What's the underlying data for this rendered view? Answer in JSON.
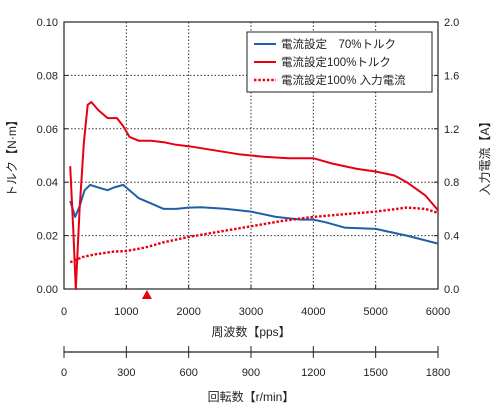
{
  "chart_data": {
    "type": "line",
    "x": {
      "label": "周波数【pps】",
      "range": [
        0,
        6000
      ],
      "ticks": [
        0,
        1000,
        2000,
        3000,
        4000,
        5000,
        6000
      ],
      "tick_labels": [
        "0",
        "1000",
        "2000",
        "3000",
        "4000",
        "5000",
        "6000"
      ]
    },
    "y_left": {
      "label": "トルク【N·m】",
      "range": [
        0,
        0.1
      ],
      "ticks": [
        0,
        0.02,
        0.04,
        0.06,
        0.08,
        0.1
      ],
      "tick_labels": [
        "0.00",
        "0.02",
        "0.04",
        "0.06",
        "0.08",
        "0.10"
      ]
    },
    "y_right": {
      "label": "入力電流【A】",
      "range": [
        0,
        2.0
      ],
      "ticks": [
        0,
        0.4,
        0.8,
        1.2,
        1.6,
        2.0
      ],
      "tick_labels": [
        "0.0",
        "0.4",
        "0.8",
        "1.2",
        "1.6",
        "2.0"
      ]
    },
    "x2": {
      "label": "回転数【r/min】",
      "range": [
        0,
        1800
      ],
      "ticks": [
        0,
        300,
        600,
        900,
        1200,
        1500,
        1800
      ],
      "tick_labels": [
        "0",
        "300",
        "600",
        "900",
        "1200",
        "1500",
        "1800"
      ]
    },
    "grid": "dotted",
    "legend_position": "top-right",
    "marker": {
      "x": 1330,
      "shape": "triangle",
      "color": "#e60012"
    },
    "series": [
      {
        "name": "電流設定　70%トルク",
        "axis": "left",
        "color": "#1f5fa8",
        "style": "solid",
        "points": [
          [
            100,
            0.033
          ],
          [
            180,
            0.027
          ],
          [
            250,
            0.031
          ],
          [
            330,
            0.037
          ],
          [
            420,
            0.039
          ],
          [
            550,
            0.038
          ],
          [
            700,
            0.037
          ],
          [
            800,
            0.038
          ],
          [
            950,
            0.039
          ],
          [
            1050,
            0.037
          ],
          [
            1200,
            0.034
          ],
          [
            1400,
            0.032
          ],
          [
            1600,
            0.03
          ],
          [
            1800,
            0.03
          ],
          [
            2000,
            0.0305
          ],
          [
            2200,
            0.0306
          ],
          [
            2600,
            0.03
          ],
          [
            3000,
            0.029
          ],
          [
            3400,
            0.027
          ],
          [
            3800,
            0.026
          ],
          [
            4000,
            0.026
          ],
          [
            4200,
            0.025
          ],
          [
            4500,
            0.023
          ],
          [
            5000,
            0.0225
          ],
          [
            5500,
            0.02
          ],
          [
            6000,
            0.017
          ]
        ]
      },
      {
        "name": "電流設定100%トルク",
        "axis": "left",
        "color": "#e60012",
        "style": "solid",
        "points": [
          [
            100,
            0.046
          ],
          [
            150,
            0.022
          ],
          [
            190,
            0.0
          ],
          [
            250,
            0.03
          ],
          [
            320,
            0.055
          ],
          [
            380,
            0.069
          ],
          [
            440,
            0.07
          ],
          [
            550,
            0.067
          ],
          [
            700,
            0.064
          ],
          [
            850,
            0.064
          ],
          [
            950,
            0.061
          ],
          [
            1050,
            0.057
          ],
          [
            1200,
            0.0555
          ],
          [
            1400,
            0.0555
          ],
          [
            1600,
            0.055
          ],
          [
            1800,
            0.054
          ],
          [
            2000,
            0.0535
          ],
          [
            2400,
            0.052
          ],
          [
            2800,
            0.0505
          ],
          [
            3200,
            0.0495
          ],
          [
            3600,
            0.049
          ],
          [
            4000,
            0.049
          ],
          [
            4300,
            0.047
          ],
          [
            4700,
            0.045
          ],
          [
            5000,
            0.044
          ],
          [
            5300,
            0.0425
          ],
          [
            5500,
            0.04
          ],
          [
            5800,
            0.035
          ],
          [
            6000,
            0.0295
          ]
        ]
      },
      {
        "name": "電流設定100%  入力電流",
        "axis": "right",
        "color": "#e60012",
        "style": "dotted",
        "points": [
          [
            100,
            0.2
          ],
          [
            300,
            0.24
          ],
          [
            500,
            0.26
          ],
          [
            800,
            0.28
          ],
          [
            1000,
            0.285
          ],
          [
            1300,
            0.31
          ],
          [
            1600,
            0.35
          ],
          [
            2000,
            0.39
          ],
          [
            2500,
            0.43
          ],
          [
            3000,
            0.47
          ],
          [
            3500,
            0.51
          ],
          [
            4000,
            0.54
          ],
          [
            4500,
            0.56
          ],
          [
            5000,
            0.58
          ],
          [
            5500,
            0.61
          ],
          [
            5800,
            0.6
          ],
          [
            6000,
            0.57
          ]
        ]
      }
    ]
  }
}
